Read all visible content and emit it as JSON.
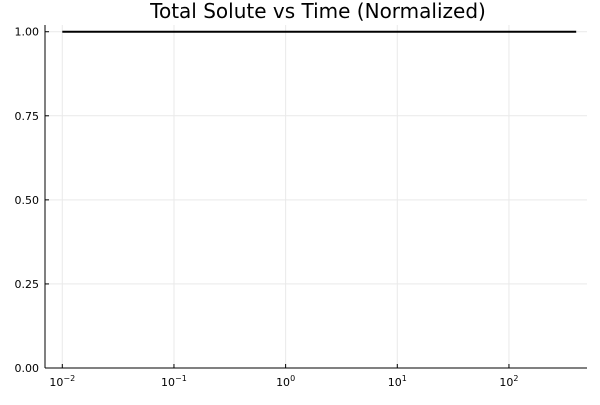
{
  "chart_data": {
    "type": "line",
    "title": "Total Solute vs Time (Normalized)",
    "xlabel": "",
    "ylabel": "",
    "xscale": "log",
    "xlim": [
      0.007,
      500
    ],
    "ylim": [
      0,
      1.02
    ],
    "grid": true,
    "legend": "none",
    "x_ticks": [
      {
        "value": 0.01,
        "base": "10",
        "exp": "−2"
      },
      {
        "value": 0.1,
        "base": "10",
        "exp": "−1"
      },
      {
        "value": 1,
        "base": "10",
        "exp": "0"
      },
      {
        "value": 10,
        "base": "10",
        "exp": "1"
      },
      {
        "value": 100,
        "base": "10",
        "exp": "2"
      }
    ],
    "y_ticks": [
      {
        "value": 0.0,
        "label": "0.00"
      },
      {
        "value": 0.25,
        "label": "0.25"
      },
      {
        "value": 0.5,
        "label": "0.50"
      },
      {
        "value": 0.75,
        "label": "0.75"
      },
      {
        "value": 1.0,
        "label": "1.00"
      }
    ],
    "series": [
      {
        "color": "#000000",
        "x": [
          0.01,
          400
        ],
        "y": [
          1.0,
          1.0
        ]
      }
    ]
  }
}
